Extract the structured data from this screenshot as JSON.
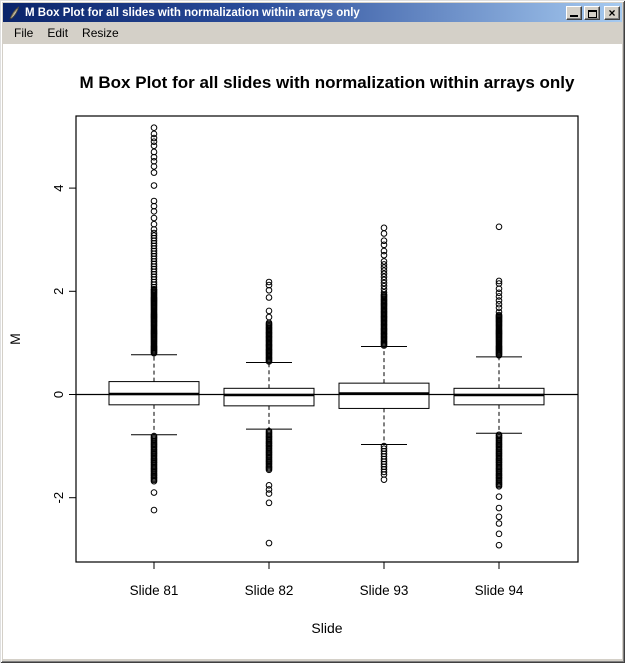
{
  "window": {
    "title": "M Box Plot for all slides with normalization within arrays only",
    "icon": "quill-icon",
    "controls": {
      "minimize": "minimize",
      "maximize": "maximize",
      "close_glyph": "×"
    }
  },
  "menu": {
    "items": [
      "File",
      "Edit",
      "Resize"
    ]
  },
  "chart_data": {
    "type": "box",
    "title": "M Box Plot for all slides with normalization within arrays only",
    "xlabel": "Slide",
    "ylabel": "M",
    "y_ticks": [
      -2,
      0,
      2,
      4
    ],
    "ylim": [
      -3.25,
      5.4
    ],
    "reference_line_y": 0,
    "grid": false,
    "categories": [
      "Slide 81",
      "Slide 82",
      "Slide 93",
      "Slide 94"
    ],
    "series": [
      {
        "name": "Slide 81",
        "q1": -0.2,
        "median": 0.01,
        "q3": 0.25,
        "whisker_low": -0.78,
        "whisker_high": 0.77,
        "outlier_runs": [
          {
            "from": 0.8,
            "to": 2.05,
            "step": 0.02
          },
          {
            "from": 2.08,
            "to": 3.15,
            "step": 0.05
          },
          {
            "from": -1.68,
            "to": -0.8,
            "step": 0.025
          }
        ],
        "outliers": [
          3.2,
          3.3,
          3.42,
          3.55,
          3.65,
          3.75,
          4.05,
          4.3,
          4.42,
          4.52,
          4.6,
          4.7,
          4.82,
          4.9,
          4.97,
          5.05,
          5.17,
          -1.9,
          -2.24
        ]
      },
      {
        "name": "Slide 82",
        "q1": -0.22,
        "median": -0.01,
        "q3": 0.12,
        "whisker_low": -0.67,
        "whisker_high": 0.62,
        "outlier_runs": [
          {
            "from": 0.64,
            "to": 1.4,
            "step": 0.022
          },
          {
            "from": -1.46,
            "to": -0.69,
            "step": 0.025
          }
        ],
        "outliers": [
          1.5,
          1.62,
          1.88,
          2.02,
          2.12,
          2.18,
          -1.76,
          -1.84,
          -1.92,
          -2.1,
          -2.88
        ]
      },
      {
        "name": "Slide 93",
        "q1": -0.27,
        "median": 0.02,
        "q3": 0.22,
        "whisker_low": -0.97,
        "whisker_high": 0.93,
        "outlier_runs": [
          {
            "from": 0.95,
            "to": 1.95,
            "step": 0.022
          },
          {
            "from": 1.98,
            "to": 2.6,
            "step": 0.06
          },
          {
            "from": -1.55,
            "to": -1.0,
            "step": 0.05
          }
        ],
        "outliers": [
          2.7,
          2.78,
          2.9,
          2.98,
          3.12,
          3.23,
          -1.65
        ]
      },
      {
        "name": "Slide 94",
        "q1": -0.2,
        "median": -0.01,
        "q3": 0.12,
        "whisker_low": -0.75,
        "whisker_high": 0.73,
        "outlier_runs": [
          {
            "from": 0.76,
            "to": 1.55,
            "step": 0.02
          },
          {
            "from": -1.78,
            "to": -0.78,
            "step": 0.025
          }
        ],
        "outliers": [
          1.6,
          1.68,
          1.75,
          1.82,
          1.9,
          1.97,
          2.05,
          2.15,
          2.2,
          3.25,
          -1.98,
          -2.2,
          -2.37,
          -2.5,
          -2.7,
          -2.92
        ]
      }
    ]
  }
}
